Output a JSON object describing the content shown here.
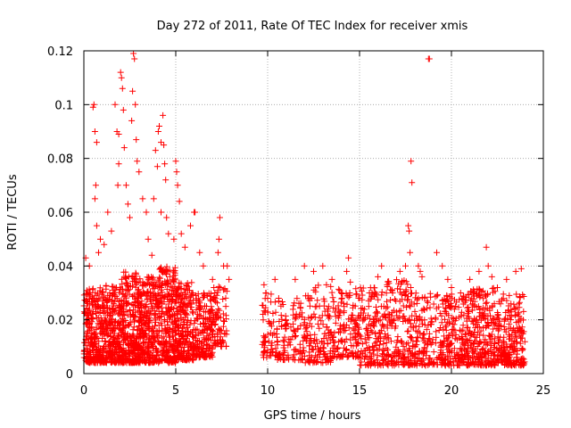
{
  "chart_data": {
    "type": "scatter",
    "title": "Day 272 of 2011, Rate Of TEC Index for receiver xmis",
    "xlabel": "GPS time / hours",
    "ylabel": "ROTI / TECUs",
    "xlim": [
      0,
      25
    ],
    "ylim": [
      0,
      0.12
    ],
    "xticks": [
      "0",
      "5",
      "10",
      "15",
      "20",
      "25"
    ],
    "yticks": [
      "0",
      "0.02",
      "0.04",
      "0.06",
      "0.08",
      "0.1",
      "0.12"
    ],
    "grid": true,
    "marker": "+",
    "color": "#ff0000",
    "series": [
      {
        "name": "ROTI",
        "points": [
          [
            0.1,
            0.043
          ],
          [
            0.3,
            0.04
          ],
          [
            0.5,
            0.099
          ],
          [
            0.55,
            0.1
          ],
          [
            0.6,
            0.09
          ],
          [
            0.7,
            0.086
          ],
          [
            0.65,
            0.07
          ],
          [
            0.6,
            0.065
          ],
          [
            0.7,
            0.055
          ],
          [
            0.8,
            0.045
          ],
          [
            0.9,
            0.05
          ],
          [
            1.1,
            0.048
          ],
          [
            1.3,
            0.06
          ],
          [
            1.5,
            0.053
          ],
          [
            1.7,
            0.1
          ],
          [
            1.8,
            0.09
          ],
          [
            1.9,
            0.089
          ],
          [
            2.0,
            0.112
          ],
          [
            2.05,
            0.11
          ],
          [
            2.1,
            0.106
          ],
          [
            2.15,
            0.098
          ],
          [
            2.2,
            0.084
          ],
          [
            1.9,
            0.078
          ],
          [
            1.85,
            0.07
          ],
          [
            2.3,
            0.07
          ],
          [
            2.4,
            0.063
          ],
          [
            2.5,
            0.058
          ],
          [
            2.6,
            0.094
          ],
          [
            2.65,
            0.105
          ],
          [
            2.7,
            0.119
          ],
          [
            2.75,
            0.117
          ],
          [
            2.8,
            0.1
          ],
          [
            2.85,
            0.087
          ],
          [
            2.9,
            0.079
          ],
          [
            3.0,
            0.075
          ],
          [
            3.2,
            0.065
          ],
          [
            3.4,
            0.06
          ],
          [
            3.5,
            0.05
          ],
          [
            3.7,
            0.044
          ],
          [
            3.9,
            0.083
          ],
          [
            4.0,
            0.077
          ],
          [
            4.05,
            0.09
          ],
          [
            4.1,
            0.092
          ],
          [
            4.2,
            0.086
          ],
          [
            4.3,
            0.096
          ],
          [
            4.35,
            0.085
          ],
          [
            4.4,
            0.078
          ],
          [
            4.45,
            0.072
          ],
          [
            4.5,
            0.058
          ],
          [
            4.6,
            0.052
          ],
          [
            4.2,
            0.06
          ],
          [
            3.8,
            0.065
          ],
          [
            4.9,
            0.05
          ],
          [
            5.0,
            0.079
          ],
          [
            5.05,
            0.075
          ],
          [
            5.1,
            0.07
          ],
          [
            5.2,
            0.064
          ],
          [
            5.3,
            0.052
          ],
          [
            5.5,
            0.047
          ],
          [
            5.8,
            0.055
          ],
          [
            6.0,
            0.06
          ],
          [
            6.05,
            0.06
          ],
          [
            6.3,
            0.045
          ],
          [
            6.5,
            0.04
          ],
          [
            7.0,
            0.035
          ],
          [
            7.3,
            0.045
          ],
          [
            7.35,
            0.05
          ],
          [
            7.4,
            0.058
          ],
          [
            7.6,
            0.04
          ],
          [
            7.8,
            0.04
          ],
          [
            7.9,
            0.035
          ],
          [
            9.8,
            0.033
          ],
          [
            9.9,
            0.03
          ],
          [
            10.0,
            0.028
          ],
          [
            10.4,
            0.035
          ],
          [
            10.6,
            0.028
          ],
          [
            11.0,
            0.02
          ],
          [
            11.5,
            0.035
          ],
          [
            12.0,
            0.04
          ],
          [
            12.5,
            0.038
          ],
          [
            13.0,
            0.04
          ],
          [
            13.2,
            0.033
          ],
          [
            13.5,
            0.035
          ],
          [
            14.0,
            0.03
          ],
          [
            14.3,
            0.038
          ],
          [
            14.4,
            0.043
          ],
          [
            14.5,
            0.034
          ],
          [
            15.0,
            0.028
          ],
          [
            15.5,
            0.025
          ],
          [
            16.0,
            0.036
          ],
          [
            16.2,
            0.04
          ],
          [
            16.5,
            0.033
          ],
          [
            16.8,
            0.03
          ],
          [
            17.2,
            0.038
          ],
          [
            17.5,
            0.04
          ],
          [
            17.65,
            0.055
          ],
          [
            17.7,
            0.053
          ],
          [
            17.75,
            0.045
          ],
          [
            17.8,
            0.079
          ],
          [
            17.85,
            0.071
          ],
          [
            18.2,
            0.04
          ],
          [
            18.3,
            0.038
          ],
          [
            18.4,
            0.036
          ],
          [
            18.75,
            0.117
          ],
          [
            18.8,
            0.117
          ],
          [
            19.2,
            0.045
          ],
          [
            19.5,
            0.04
          ],
          [
            19.8,
            0.035
          ],
          [
            20.0,
            0.032
          ],
          [
            20.5,
            0.03
          ],
          [
            21.0,
            0.035
          ],
          [
            21.5,
            0.038
          ],
          [
            21.9,
            0.047
          ],
          [
            22.0,
            0.04
          ],
          [
            22.2,
            0.036
          ],
          [
            22.5,
            0.032
          ],
          [
            23.0,
            0.035
          ],
          [
            23.5,
            0.038
          ],
          [
            23.8,
            0.039
          ]
        ]
      }
    ],
    "density_bands": [
      {
        "from": 0.0,
        "to": 1.0,
        "lo": 0.004,
        "hi": 0.032,
        "count": 260
      },
      {
        "from": 1.0,
        "to": 2.0,
        "lo": 0.004,
        "hi": 0.034,
        "count": 260
      },
      {
        "from": 2.0,
        "to": 3.0,
        "lo": 0.004,
        "hi": 0.038,
        "count": 290
      },
      {
        "from": 3.0,
        "to": 4.0,
        "lo": 0.004,
        "hi": 0.036,
        "count": 270
      },
      {
        "from": 4.0,
        "to": 5.0,
        "lo": 0.004,
        "hi": 0.04,
        "count": 280
      },
      {
        "from": 5.0,
        "to": 6.0,
        "lo": 0.005,
        "hi": 0.034,
        "count": 230
      },
      {
        "from": 6.0,
        "to": 7.0,
        "lo": 0.006,
        "hi": 0.03,
        "count": 180
      },
      {
        "from": 7.0,
        "to": 7.8,
        "lo": 0.01,
        "hi": 0.033,
        "count": 80
      },
      {
        "from": 9.7,
        "to": 10.5,
        "lo": 0.006,
        "hi": 0.03,
        "count": 60
      },
      {
        "from": 10.5,
        "to": 12.0,
        "lo": 0.005,
        "hi": 0.028,
        "count": 110
      },
      {
        "from": 12.0,
        "to": 13.5,
        "lo": 0.004,
        "hi": 0.033,
        "count": 140
      },
      {
        "from": 13.5,
        "to": 15.0,
        "lo": 0.006,
        "hi": 0.032,
        "count": 140
      },
      {
        "from": 15.0,
        "to": 16.5,
        "lo": 0.003,
        "hi": 0.032,
        "count": 170
      },
      {
        "from": 16.5,
        "to": 18.0,
        "lo": 0.003,
        "hi": 0.035,
        "count": 180
      },
      {
        "from": 18.0,
        "to": 19.5,
        "lo": 0.003,
        "hi": 0.03,
        "count": 150
      },
      {
        "from": 19.5,
        "to": 21.0,
        "lo": 0.003,
        "hi": 0.03,
        "count": 210
      },
      {
        "from": 21.0,
        "to": 22.5,
        "lo": 0.003,
        "hi": 0.032,
        "count": 230
      },
      {
        "from": 22.5,
        "to": 24.0,
        "lo": 0.003,
        "hi": 0.03,
        "count": 230
      }
    ]
  }
}
